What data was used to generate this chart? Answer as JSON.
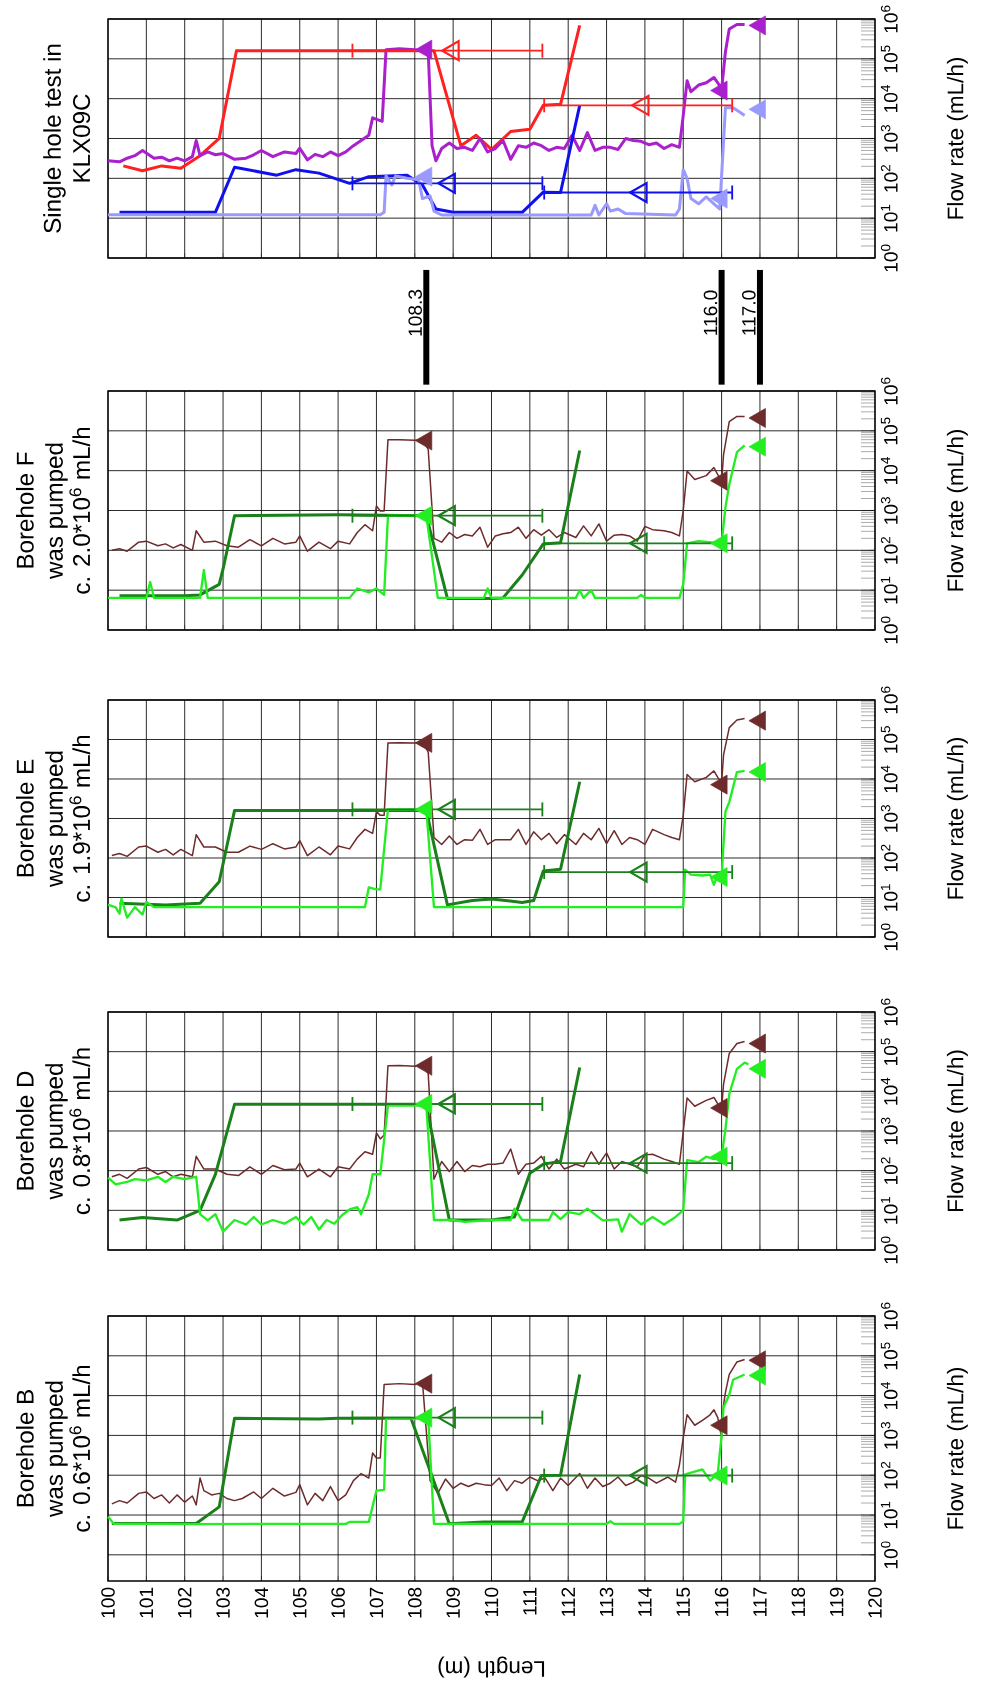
{
  "chart_data": [
    {
      "type": "line",
      "title": "Borehole B was pumped",
      "subtitle": "c. 0.6*10$^{6}$ mL/h",
      "xlabel": "Length (m)",
      "ylabel": "Flow rate (mL/h)",
      "xlim": [
        100,
        120
      ],
      "ylim": [
        0.22,
        1000000
      ],
      "xticks": [
        100,
        101,
        102,
        103,
        104,
        105,
        106,
        107,
        108,
        109,
        110,
        111,
        112,
        113,
        114,
        115,
        116,
        117,
        118,
        119,
        120
      ],
      "yticks": [
        {
          "value": 1,
          "label": "10$^{0}$"
        },
        {
          "value": 10,
          "label": "10$^{1}$"
        },
        {
          "value": 100,
          "label": "10$^{2}$"
        },
        {
          "value": 1000,
          "label": "10$^{3}$"
        },
        {
          "value": 10000,
          "label": "10$^{4}$"
        },
        {
          "value": 100000,
          "label": "10$^{5}$"
        },
        {
          "value": 1000000,
          "label": "10$^{6}$"
        }
      ],
      "log": "y",
      "grid": true,
      "series": [
        {
          "type": "line",
          "color": "#6e2b2b",
          "x": [
            100.1,
            100.3,
            100.5,
            100.8,
            101.0,
            101.2,
            101.4,
            101.6,
            101.8,
            102.0,
            102.2,
            102.3,
            102.4,
            102.5,
            102.7,
            102.9,
            103.1,
            103.3,
            103.5,
            103.8,
            104.0,
            104.3,
            104.6,
            104.9,
            105.0,
            105.2,
            105.4,
            105.6,
            105.8,
            106.0,
            106.2,
            106.4,
            106.6,
            106.8,
            106.9,
            107.0,
            107.1,
            107.2,
            107.6,
            108.0,
            108.2,
            108.4,
            108.6,
            108.8,
            109.0,
            109.2,
            109.4,
            109.6,
            109.8,
            110.0,
            110.2,
            110.4,
            110.6,
            110.8,
            111.0,
            111.2,
            111.4,
            111.6,
            111.8,
            112.0,
            112.3,
            112.5,
            112.7,
            112.9,
            113.1,
            113.3,
            113.5,
            113.7,
            113.9,
            114.1,
            114.3,
            114.6,
            114.8,
            114.9,
            115.0,
            115.1,
            115.3,
            115.5,
            115.7,
            115.8,
            115.9,
            116.0,
            116.05,
            116.1,
            116.2,
            116.4,
            116.6
          ],
          "values": [
            19,
            23,
            20,
            35,
            38,
            26,
            32,
            20,
            32,
            21,
            30,
            18,
            85,
            41,
            32,
            35,
            26,
            23,
            26,
            38,
            26,
            47,
            30,
            37,
            58,
            18,
            35,
            23,
            52,
            23,
            32,
            73,
            110,
            85,
            360,
            270,
            270,
            19000,
            20000,
            19000,
            22000,
            73,
            35,
            80,
            47,
            63,
            52,
            63,
            58,
            55,
            85,
            41,
            73,
            63,
            90,
            73,
            85,
            41,
            85,
            55,
            110,
            47,
            85,
            52,
            63,
            90,
            55,
            67,
            98,
            85,
            63,
            90,
            67,
            180,
            880,
            3300,
            1800,
            2400,
            3300,
            4400,
            2800,
            880,
            5800,
            12000,
            34000,
            70000,
            81000
          ]
        },
        {
          "type": "line",
          "color": "#1a801a",
          "x": [
            100.1,
            102.3,
            102.9,
            103.3,
            105.5,
            106.0,
            107.9,
            108.9,
            109.8,
            110.8,
            111.3,
            111.8,
            112.3
          ],
          "values": [
            6.1,
            6.1,
            16,
            2700,
            2600,
            2700,
            2700,
            6,
            6.7,
            6.7,
            98,
            100,
            34000
          ]
        },
        {
          "type": "line",
          "color": "#22ee22",
          "x": [
            100.0,
            100.15,
            101.5,
            102.2,
            104.0,
            106.2,
            106.3,
            106.8,
            107.0,
            107.2,
            107.25,
            108.35,
            108.5,
            113.0,
            113.1,
            113.2,
            114.9,
            115.0,
            115.05,
            115.5,
            115.7,
            115.9,
            116.0,
            116.05,
            116.2,
            116.3,
            116.6
          ],
          "values": [
            9,
            6,
            6,
            5.9,
            6,
            6,
            6.7,
            6.7,
            41,
            43,
            2600,
            2700,
            6,
            6,
            7,
            6,
            6,
            7,
            105,
            140,
            73,
            110,
            1000,
            5100,
            10500,
            25000,
            34000
          ]
        },
        {
          "type": "scatter",
          "marker": "triangle",
          "color": "#6e2b2b",
          "x": [
            108.3,
            116.0,
            117.0
          ],
          "values": [
            20000,
            1800,
            77000
          ]
        },
        {
          "type": "scatter",
          "marker": "triangle",
          "color": "#22ee22",
          "x": [
            108.3,
            116.0,
            117.0
          ],
          "values": [
            2800,
            98,
            32000
          ]
        },
        {
          "type": "scatter",
          "marker": "triangle",
          "color": "#1a801a",
          "x": [
            108.9,
            113.9
          ],
          "values": [
            2800,
            98
          ],
          "xerrors": [
            [
              106.35,
              111.35
            ],
            [
              111.35,
              116.3
            ]
          ]
        }
      ]
    },
    {
      "type": "line",
      "title": "Borehole D was pumped",
      "subtitle": "c. 0.8*10$^{6}$ mL/h",
      "ylabel": "Flow rate (mL/h)",
      "xlim": [
        100,
        120
      ],
      "ylim": [
        1,
        1000000
      ],
      "xticks": [
        100,
        101,
        102,
        103,
        104,
        105,
        106,
        107,
        108,
        109,
        110,
        111,
        112,
        113,
        114,
        115,
        116,
        117,
        118,
        119,
        120
      ],
      "yticks": [
        {
          "value": 1,
          "label": "10$^{0}$"
        },
        {
          "value": 10,
          "label": "10$^{1}$"
        },
        {
          "value": 100,
          "label": "10$^{2}$"
        },
        {
          "value": 1000,
          "label": "10$^{3}$"
        },
        {
          "value": 10000,
          "label": "10$^{4}$"
        },
        {
          "value": 100000,
          "label": "10$^{5}$"
        },
        {
          "value": 1000000,
          "label": "10$^{6}$"
        }
      ],
      "tick_labels": "y",
      "log": "y",
      "grid": true,
      "series": [
        {
          "type": "line",
          "color": "#6e2b2b",
          "x": [
            100.1,
            100.3,
            100.5,
            100.8,
            101.0,
            101.3,
            101.5,
            101.7,
            101.9,
            102.2,
            102.3,
            102.5,
            102.8,
            103.1,
            103.4,
            103.7,
            104.0,
            104.3,
            104.6,
            104.9,
            105.0,
            105.2,
            105.5,
            105.8,
            106.0,
            106.3,
            106.5,
            106.7,
            106.9,
            107.0,
            107.1,
            107.2,
            107.3,
            107.6,
            108.0,
            108.2,
            108.35,
            108.5,
            108.7,
            108.9,
            109.1,
            109.3,
            109.5,
            109.7,
            109.9,
            110.1,
            110.3,
            110.5,
            110.7,
            110.9,
            111.1,
            111.3,
            111.5,
            111.7,
            111.9,
            112.2,
            112.4,
            112.6,
            112.8,
            113.0,
            113.2,
            113.4,
            113.6,
            113.8,
            114.0,
            114.2,
            114.5,
            114.7,
            114.9,
            115.0,
            115.1,
            115.3,
            115.6,
            115.8,
            115.9,
            116.0,
            116.05,
            116.2,
            116.4,
            116.6
          ],
          "values": [
            70,
            81,
            64,
            110,
            120,
            81,
            95,
            70,
            81,
            70,
            230,
            110,
            110,
            81,
            75,
            125,
            81,
            135,
            105,
            110,
            155,
            70,
            110,
            70,
            125,
            110,
            195,
            300,
            260,
            890,
            630,
            790,
            44000,
            45000,
            43000,
            47000,
            28000,
            61,
            170,
            95,
            170,
            95,
            135,
            125,
            145,
            145,
            155,
            350,
            81,
            145,
            155,
            230,
            110,
            195,
            110,
            145,
            125,
            300,
            145,
            280,
            110,
            170,
            145,
            125,
            250,
            260,
            195,
            170,
            145,
            980,
            6800,
            4200,
            5900,
            7000,
            4800,
            3600,
            15000,
            90000,
            160000,
            180000
          ]
        },
        {
          "type": "line",
          "color": "#1a801a",
          "x": [
            100.3,
            100.9,
            101.8,
            102.4,
            102.8,
            103.3,
            106.0,
            108.0,
            108.3,
            108.9,
            110.0,
            110.6,
            111.0,
            111.35,
            111.8,
            112.3
          ],
          "values": [
            5.7,
            6.6,
            5.7,
            10,
            81,
            4700,
            4700,
            4700,
            4400,
            5.7,
            5.7,
            6.8,
            86,
            146,
            170,
            40000
          ]
        },
        {
          "type": "line",
          "color": "#22ee22",
          "x": [
            100.0,
            100.2,
            100.5,
            100.7,
            101.0,
            101.3,
            101.5,
            101.7,
            102.0,
            102.3,
            102.4,
            102.6,
            102.8,
            103.0,
            103.3,
            103.6,
            103.8,
            104.0,
            104.3,
            104.6,
            104.9,
            105.1,
            105.3,
            105.5,
            105.7,
            105.9,
            106.1,
            106.3,
            106.5,
            106.6,
            106.8,
            106.9,
            107.1,
            107.3,
            108.3,
            108.5,
            109.0,
            109.3,
            110.0,
            110.5,
            110.6,
            110.8,
            111.5,
            111.6,
            111.8,
            112.0,
            112.3,
            112.5,
            112.9,
            113.3,
            113.4,
            113.6,
            113.9,
            114.2,
            114.5,
            114.8,
            115.0,
            115.1,
            115.4,
            115.6,
            115.8,
            116.0,
            116.1,
            116.2,
            116.4,
            116.6,
            116.7
          ],
          "values": [
            67,
            45,
            52,
            61,
            57,
            70,
            52,
            70,
            61,
            70,
            8,
            5.6,
            8,
            2.9,
            5.7,
            4.4,
            6.8,
            4.4,
            5.7,
            4.6,
            6.8,
            4.4,
            6.8,
            3.3,
            5.7,
            4.6,
            7.5,
            10.5,
            12,
            8,
            25,
            81,
            81,
            4400,
            4400,
            5.7,
            5.7,
            5.1,
            5.7,
            5.7,
            11,
            5.7,
            5.7,
            9,
            6,
            9,
            8,
            11,
            5.6,
            5.9,
            2.9,
            8,
            4.4,
            6.8,
            4.4,
            6.8,
            10,
            185,
            165,
            225,
            195,
            225,
            1100,
            8500,
            37000,
            53000,
            48000
          ]
        },
        {
          "type": "scatter",
          "marker": "triangle",
          "color": "#6e2b2b",
          "x": [
            108.3,
            116.0,
            117.0
          ],
          "values": [
            44000,
            3800,
            160000
          ]
        },
        {
          "type": "scatter",
          "marker": "triangle",
          "color": "#22ee22",
          "x": [
            108.3,
            116.0,
            117.0
          ],
          "values": [
            4800,
            225,
            37000
          ]
        },
        {
          "type": "scatter",
          "marker": "triangle",
          "color": "#1a801a",
          "x": [
            108.9,
            113.9
          ],
          "values": [
            4800,
            155
          ],
          "xerrors": [
            [
              106.35,
              111.35
            ],
            [
              111.35,
              116.3
            ]
          ]
        }
      ]
    },
    {
      "type": "line",
      "title": "Borehole E was pumped",
      "subtitle": "c. 1.9*10$^{6}$ mL/h",
      "ylabel": "Flow rate (mL/h)",
      "xlim": [
        100,
        120
      ],
      "ylim": [
        1,
        1000000
      ],
      "xticks": [
        100,
        101,
        102,
        103,
        104,
        105,
        106,
        107,
        108,
        109,
        110,
        111,
        112,
        113,
        114,
        115,
        116,
        117,
        118,
        119,
        120
      ],
      "yticks": [
        {
          "value": 1,
          "label": "10$^{0}$"
        },
        {
          "value": 10,
          "label": "10$^{1}$"
        },
        {
          "value": 100,
          "label": "10$^{2}$"
        },
        {
          "value": 1000,
          "label": "10$^{3}$"
        },
        {
          "value": 10000,
          "label": "10$^{4}$"
        },
        {
          "value": 100000,
          "label": "10$^{5}$"
        },
        {
          "value": 1000000,
          "label": "10$^{6}$"
        }
      ],
      "tick_labels": "y",
      "log": "y",
      "grid": true,
      "series": [
        {
          "type": "line",
          "color": "#6e2b2b",
          "x": [
            100.1,
            100.3,
            100.5,
            100.8,
            101.0,
            101.3,
            101.5,
            101.7,
            101.9,
            102.2,
            102.3,
            102.5,
            102.8,
            103.1,
            103.4,
            103.7,
            104.0,
            104.3,
            104.6,
            104.9,
            105.0,
            105.2,
            105.5,
            105.8,
            106.0,
            106.3,
            106.5,
            106.7,
            106.9,
            107.0,
            107.1,
            107.2,
            107.3,
            107.6,
            108.0,
            108.2,
            108.35,
            108.5,
            108.7,
            108.9,
            109.1,
            109.3,
            109.5,
            109.7,
            109.9,
            110.1,
            110.3,
            110.5,
            110.7,
            110.9,
            111.1,
            111.3,
            111.5,
            111.7,
            111.9,
            112.2,
            112.4,
            112.6,
            112.8,
            113.0,
            113.2,
            113.4,
            113.6,
            113.8,
            114.0,
            114.2,
            114.5,
            114.7,
            114.9,
            115.0,
            115.1,
            115.3,
            115.6,
            115.8,
            115.9,
            116.0,
            116.05,
            116.2,
            116.4,
            116.6
          ],
          "values": [
            115,
            130,
            110,
            190,
            200,
            140,
            165,
            120,
            165,
            115,
            390,
            190,
            190,
            140,
            140,
            200,
            165,
            230,
            170,
            190,
            275,
            115,
            190,
            120,
            200,
            170,
            330,
            530,
            420,
            1500,
            1200,
            1200,
            82000,
            83000,
            82000,
            88000,
            48000,
            330,
            220,
            360,
            220,
            290,
            280,
            530,
            220,
            290,
            290,
            290,
            530,
            220,
            460,
            290,
            420,
            230,
            390,
            220,
            420,
            290,
            560,
            230,
            490,
            220,
            330,
            290,
            220,
            530,
            390,
            330,
            290,
            1200,
            13000,
            8500,
            11000,
            16000,
            11000,
            7800,
            40000,
            200000,
            310000,
            340000
          ]
        },
        {
          "type": "line",
          "color": "#1a801a",
          "x": [
            100.3,
            101.5,
            102.4,
            102.9,
            103.3,
            106.0,
            108.3,
            108.85,
            109.5,
            110.0,
            110.8,
            111.1,
            111.35,
            111.8,
            112.3
          ],
          "values": [
            7.2,
            6.5,
            7.2,
            25,
            1600,
            1600,
            1600,
            6.5,
            8.4,
            9.2,
            7.5,
            8.4,
            47,
            52,
            8500
          ]
        },
        {
          "type": "line",
          "color": "#22ee22",
          "x": [
            100.0,
            100.2,
            100.3,
            100.35,
            100.5,
            100.7,
            100.9,
            101.0,
            101.2,
            103.0,
            106.7,
            106.8,
            107.0,
            107.1,
            107.3,
            108.3,
            108.5,
            115.0,
            115.05,
            115.2,
            115.5,
            115.7,
            115.8,
            115.9,
            116.0,
            116.1,
            116.2,
            116.4,
            116.6
          ],
          "values": [
            6.6,
            5.6,
            3.9,
            9.4,
            3.1,
            5.7,
            3.7,
            7.7,
            5.7,
            5.7,
            5.7,
            18,
            16,
            16,
            1700,
            1700,
            5.7,
            5.7,
            51,
            38,
            36,
            38,
            21,
            38,
            33,
            1500,
            2600,
            15000,
            16000
          ]
        },
        {
          "type": "scatter",
          "marker": "triangle",
          "color": "#6e2b2b",
          "x": [
            108.3,
            116.0,
            117.0
          ],
          "values": [
            82000,
            7200,
            300000
          ]
        },
        {
          "type": "scatter",
          "marker": "triangle",
          "color": "#22ee22",
          "x": [
            108.3,
            116.0,
            117.0
          ],
          "values": [
            1700,
            33,
            15000
          ]
        },
        {
          "type": "scatter",
          "marker": "triangle",
          "color": "#1a801a",
          "x": [
            108.9,
            113.9
          ],
          "values": [
            1700,
            44
          ],
          "xerrors": [
            [
              106.35,
              111.35
            ],
            [
              111.35,
              116.3
            ]
          ]
        }
      ]
    },
    {
      "type": "line",
      "title": "Borehole F was pumped",
      "subtitle": "c. 2.0*10$^{6}$ mL/h",
      "ylabel": "Flow rate (mL/h)",
      "xlim": [
        100,
        120
      ],
      "ylim": [
        1,
        1000000
      ],
      "xticks": [
        100,
        101,
        102,
        103,
        104,
        105,
        106,
        107,
        108,
        109,
        110,
        111,
        112,
        113,
        114,
        115,
        116,
        117,
        118,
        119,
        120
      ],
      "yticks": [
        {
          "value": 1,
          "label": "10$^{0}$"
        },
        {
          "value": 10,
          "label": "10$^{1}$"
        },
        {
          "value": 100,
          "label": "10$^{2}$"
        },
        {
          "value": 1000,
          "label": "10$^{3}$"
        },
        {
          "value": 10000,
          "label": "10$^{4}$"
        },
        {
          "value": 100000,
          "label": "10$^{5}$"
        },
        {
          "value": 1000000,
          "label": "10$^{6}$"
        }
      ],
      "tick_labels": "y",
      "log": "y",
      "grid": true,
      "series": [
        {
          "type": "line",
          "color": "#6e2b2b",
          "x": [
            100.1,
            100.3,
            100.5,
            100.8,
            101.0,
            101.3,
            101.5,
            101.7,
            101.9,
            102.2,
            102.3,
            102.5,
            102.8,
            103.1,
            103.4,
            103.7,
            104.0,
            104.3,
            104.6,
            104.9,
            105.0,
            105.2,
            105.5,
            105.8,
            106.0,
            106.3,
            106.5,
            106.7,
            106.9,
            107.0,
            107.1,
            107.2,
            107.3,
            107.6,
            108.0,
            108.2,
            108.35,
            108.5,
            108.7,
            108.9,
            109.1,
            109.3,
            109.5,
            109.7,
            109.9,
            110.1,
            110.3,
            110.5,
            110.7,
            110.9,
            111.1,
            111.3,
            111.5,
            111.7,
            111.9,
            112.2,
            112.4,
            112.6,
            112.8,
            113.0,
            113.2,
            113.4,
            113.6,
            113.8,
            114.0,
            114.2,
            114.5,
            114.7,
            114.9,
            115.0,
            115.1,
            115.3,
            115.6,
            115.8,
            115.9,
            116.0,
            116.05,
            116.2,
            116.4,
            116.6
          ],
          "values": [
            100,
            110,
            95,
            160,
            170,
            130,
            145,
            115,
            140,
            100,
            310,
            160,
            170,
            130,
            120,
            185,
            130,
            200,
            145,
            160,
            230,
            95,
            160,
            110,
            170,
            145,
            280,
            440,
            310,
            1300,
            970,
            970,
            60000,
            60000,
            58000,
            60000,
            34000,
            200,
            160,
            280,
            200,
            250,
            230,
            380,
            120,
            230,
            260,
            280,
            380,
            200,
            330,
            240,
            330,
            210,
            280,
            210,
            410,
            230,
            460,
            170,
            240,
            250,
            230,
            170,
            400,
            330,
            310,
            280,
            230,
            1000,
            9800,
            6000,
            7500,
            12000,
            8000,
            5100,
            25000,
            170000,
            230000,
            230000
          ]
        },
        {
          "type": "line",
          "color": "#1a801a",
          "x": [
            100.3,
            102.0,
            102.4,
            102.9,
            103.0,
            103.3,
            106.0,
            108.3,
            108.85,
            110.0,
            110.3,
            110.8,
            111.35,
            111.8,
            112.3
          ],
          "values": [
            7.2,
            7.2,
            7.6,
            14,
            34,
            740,
            780,
            740,
            6.2,
            6.2,
            6.4,
            24,
            145,
            155,
            32000
          ]
        },
        {
          "type": "line",
          "color": "#22ee22",
          "x": [
            100.0,
            101.0,
            101.1,
            101.2,
            102.4,
            102.5,
            102.6,
            106.3,
            106.5,
            106.8,
            107.0,
            107.2,
            107.3,
            108.3,
            108.6,
            109.8,
            109.9,
            110.0,
            112.2,
            112.3,
            112.4,
            112.6,
            112.7,
            113.8,
            113.9,
            114.0,
            114.9,
            115.0,
            115.1,
            115.4,
            116.0,
            116.1,
            116.2,
            116.4,
            116.6
          ],
          "values": [
            6.4,
            6.4,
            16,
            6.4,
            6.4,
            32,
            6.4,
            6.4,
            11,
            8.8,
            11,
            7.6,
            740,
            740,
            6.4,
            6.4,
            11,
            6.4,
            6.4,
            10,
            6.4,
            10,
            6.4,
            6.4,
            7.6,
            6.4,
            6.4,
            14,
            150,
            170,
            150,
            1200,
            4500,
            29000,
            43000
          ]
        },
        {
          "type": "scatter",
          "marker": "triangle",
          "color": "#6e2b2b",
          "x": [
            108.3,
            116.0,
            117.0
          ],
          "values": [
            57000,
            5600,
            210000
          ]
        },
        {
          "type": "scatter",
          "marker": "triangle",
          "color": "#22ee22",
          "x": [
            108.3,
            116.0,
            117.0
          ],
          "values": [
            740,
            150,
            40000
          ]
        },
        {
          "type": "scatter",
          "marker": "triangle",
          "color": "#1a801a",
          "x": [
            108.9,
            113.9
          ],
          "values": [
            740,
            150
          ],
          "xerrors": [
            [
              106.35,
              111.35
            ],
            [
              111.35,
              116.3
            ]
          ]
        }
      ]
    },
    {
      "type": "line",
      "title": "Single hole test in KLX09C",
      "ylabel": "Flow rate (mL/h)",
      "xlim": [
        100,
        120
      ],
      "ylim": [
        1,
        1000000
      ],
      "xticks": [
        100,
        101,
        102,
        103,
        104,
        105,
        106,
        107,
        108,
        109,
        110,
        111,
        112,
        113,
        114,
        115,
        116,
        117,
        118,
        119,
        120
      ],
      "yticks": [
        {
          "value": 1,
          "label": "10$^{0}$"
        },
        {
          "value": 10,
          "label": "10$^{1}$"
        },
        {
          "value": 100,
          "label": "10$^{2}$"
        },
        {
          "value": 1000,
          "label": "10$^{3}$"
        },
        {
          "value": 10000,
          "label": "10$^{4}$"
        },
        {
          "value": 100000,
          "label": "10$^{5}$"
        },
        {
          "value": 1000000,
          "label": "10$^{6}$"
        }
      ],
      "tick_labels": "y",
      "log": "y",
      "grid": true,
      "ref_lines": [
        {
          "axis": "x",
          "value": 108.3,
          "label": "108.3"
        },
        {
          "axis": "x",
          "value": 116.0,
          "label": "116.0"
        },
        {
          "axis": "x",
          "value": 117.0,
          "label": "117.0"
        }
      ],
      "series": [
        {
          "type": "line",
          "color": "#ff2020",
          "x": [
            100.4,
            100.9,
            101.4,
            101.9,
            102.4,
            102.9,
            103.35,
            108.5,
            109.2,
            109.6,
            110.0,
            110.5,
            111.0,
            111.35,
            111.8,
            112.3
          ],
          "values": [
            205,
            155,
            205,
            180,
            370,
            1000,
            160000,
            160000,
            660,
            1200,
            530,
            1500,
            1700,
            6800,
            7200,
            690000
          ]
        },
        {
          "type": "line",
          "color": "#aa20cc",
          "x": [
            100.0,
            100.3,
            100.5,
            100.7,
            100.9,
            101.2,
            101.4,
            101.6,
            101.8,
            102.0,
            102.2,
            102.3,
            102.4,
            102.6,
            102.8,
            103.0,
            103.3,
            103.6,
            103.8,
            104.0,
            104.3,
            104.6,
            104.9,
            105.0,
            105.2,
            105.4,
            105.6,
            105.8,
            106.0,
            106.2,
            106.4,
            106.6,
            106.8,
            106.9,
            107.15,
            107.25,
            107.6,
            108.0,
            108.35,
            108.45,
            108.55,
            108.7,
            108.9,
            109.1,
            109.3,
            109.5,
            109.7,
            109.9,
            110.1,
            110.3,
            110.5,
            110.7,
            110.9,
            111.1,
            111.3,
            111.5,
            111.7,
            111.9,
            112.1,
            112.3,
            112.5,
            112.7,
            112.9,
            113.1,
            113.3,
            113.5,
            113.7,
            113.9,
            114.1,
            114.3,
            114.5,
            114.7,
            114.9,
            115.0,
            115.1,
            115.2,
            115.4,
            115.6,
            115.8,
            115.9,
            116.0,
            116.1,
            116.2,
            116.4,
            116.6
          ],
          "values": [
            275,
            260,
            320,
            370,
            500,
            320,
            340,
            275,
            320,
            275,
            350,
            890,
            370,
            460,
            390,
            420,
            300,
            320,
            390,
            500,
            350,
            460,
            420,
            570,
            290,
            400,
            350,
            460,
            370,
            460,
            660,
            890,
            1200,
            3300,
            2700,
            170000,
            180000,
            170000,
            150000,
            660,
            275,
            560,
            770,
            560,
            600,
            500,
            1000,
            460,
            560,
            890,
            300,
            660,
            600,
            770,
            660,
            500,
            600,
            560,
            1200,
            500,
            1400,
            500,
            600,
            600,
            530,
            1000,
            890,
            850,
            700,
            770,
            560,
            700,
            600,
            3800,
            28000,
            15000,
            22000,
            25000,
            34000,
            25000,
            17000,
            150000,
            560000,
            730000,
            730000
          ]
        },
        {
          "type": "line",
          "color": "#1010ee",
          "x": [
            100.3,
            102.8,
            103.3,
            104.4,
            104.9,
            105.5,
            106.3,
            106.8,
            107.8,
            108.2,
            108.55,
            109.0,
            110.8,
            111.35,
            111.8,
            112.3
          ],
          "values": [
            14,
            14,
            190,
            120,
            165,
            135,
            75,
            110,
            120,
            68,
            17,
            14,
            14,
            45,
            44,
            6800
          ]
        },
        {
          "type": "line",
          "color": "#9999ff",
          "x": [
            100.0,
            107.1,
            107.2,
            107.25,
            107.4,
            107.5,
            107.8,
            108.1,
            108.2,
            108.4,
            108.5,
            108.7,
            112.6,
            112.7,
            112.8,
            113.0,
            113.1,
            113.3,
            113.5,
            114.8,
            114.9,
            115.0,
            115.1,
            115.2,
            115.4,
            115.6,
            115.8,
            115.95,
            116.0,
            116.1,
            116.3,
            116.5,
            116.6
          ],
          "values": [
            12.2,
            12.2,
            14,
            115,
            68,
            115,
            100,
            92,
            31,
            36,
            15,
            12,
            12,
            21,
            12,
            23,
            15,
            17,
            13,
            12,
            17,
            165,
            100,
            31,
            23,
            34,
            23,
            17,
            115,
            5900,
            5900,
            4400,
            3800
          ]
        },
        {
          "type": "scatter",
          "marker": "triangle",
          "color": "#ff2020",
          "x": [
            109.0,
            113.95
          ],
          "values": [
            160000,
            6800
          ],
          "xerrors": [
            [
              106.35,
              111.35
            ],
            [
              111.35,
              116.3
            ]
          ]
        },
        {
          "type": "scatter",
          "marker": "triangle",
          "color": "#aa20cc",
          "x": [
            108.3,
            116.0,
            117.0
          ],
          "values": [
            170000,
            16000,
            690000
          ]
        },
        {
          "type": "scatter",
          "marker": "triangle",
          "color": "#1010ee",
          "x": [
            108.9,
            113.9
          ],
          "values": [
            75,
            44
          ],
          "xerrors": [
            [
              106.35,
              111.35
            ],
            [
              111.35,
              116.3
            ]
          ]
        },
        {
          "type": "scatter",
          "marker": "triangle",
          "color": "#9999ff",
          "x": [
            108.3,
            116.0,
            117.0
          ],
          "values": [
            110,
            31,
            5400
          ]
        }
      ]
    }
  ]
}
